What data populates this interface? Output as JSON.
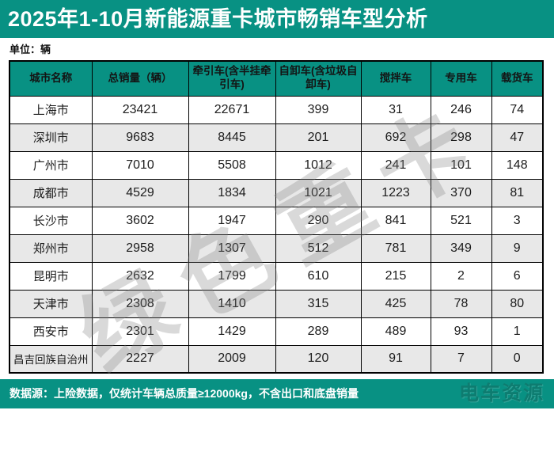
{
  "title": "2025年1-10月新能源重卡城市畅销车型分析",
  "unit_label": "单位：辆",
  "chart_data": {
    "type": "table",
    "title": "2025年1-10月新能源重卡城市畅销车型分析",
    "unit": "辆",
    "columns": [
      "城市名称",
      "总销量（辆）",
      "牵引车(含半挂牵引车)",
      "自卸车(含垃圾自卸车)",
      "搅拌车",
      "专用车",
      "载货车"
    ],
    "rows": [
      [
        "上海市",
        23421,
        22671,
        399,
        31,
        246,
        74
      ],
      [
        "深圳市",
        9683,
        8445,
        201,
        692,
        298,
        47
      ],
      [
        "广州市",
        7010,
        5508,
        1012,
        241,
        101,
        148
      ],
      [
        "成都市",
        4529,
        1834,
        1021,
        1223,
        370,
        81
      ],
      [
        "长沙市",
        3602,
        1947,
        290,
        841,
        521,
        3
      ],
      [
        "郑州市",
        2958,
        1307,
        512,
        781,
        349,
        9
      ],
      [
        "昆明市",
        2632,
        1799,
        610,
        215,
        2,
        6
      ],
      [
        "天津市",
        2308,
        1410,
        315,
        425,
        78,
        80
      ],
      [
        "西安市",
        2301,
        1429,
        289,
        489,
        93,
        1
      ],
      [
        "昌吉回族自治州",
        2227,
        2009,
        120,
        91,
        7,
        0
      ]
    ]
  },
  "watermark_text": "绿色重卡",
  "footer": {
    "source_note": "数据源：上险数据，仅统计车辆总质量≥12000kg，不含出口和底盘销量",
    "brand": "电车资源"
  },
  "colors": {
    "accent_teal": "#089183",
    "row_alt_gray": "#e8e8e8",
    "grid_border": "#000000"
  }
}
